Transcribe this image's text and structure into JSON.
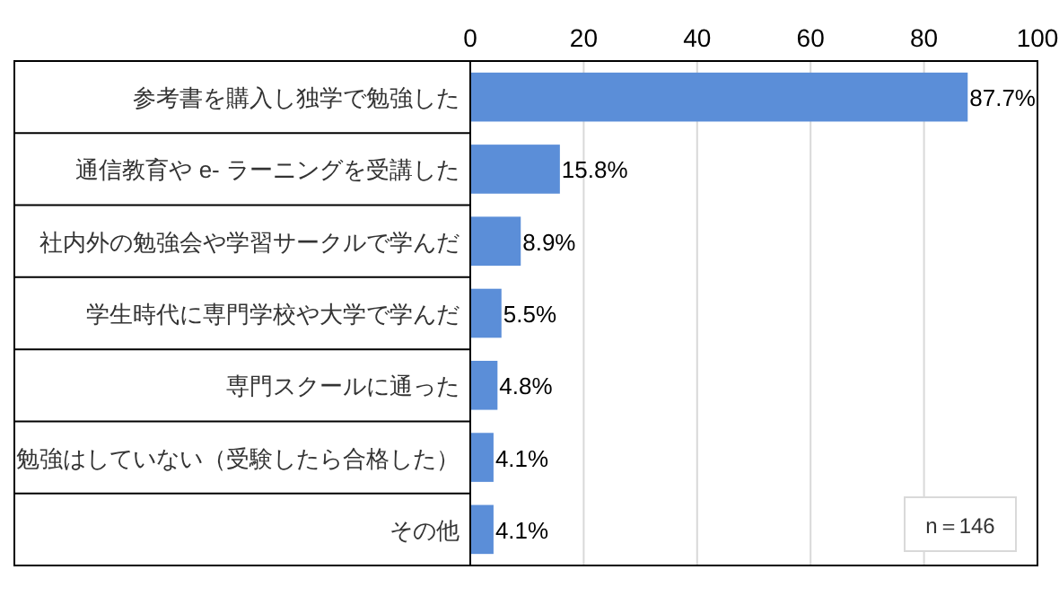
{
  "chart_data": {
    "type": "bar",
    "orientation": "horizontal",
    "categories": [
      "参考書を購入し独学で勉強した",
      "通信教育や e- ラーニングを受講した",
      "社内外の勉強会や学習サークルで学んだ",
      "学生時代に専門学校や大学で学んだ",
      "専門スクールに通った",
      "勉強はしていない（受験したら合格した）",
      "その他"
    ],
    "values": [
      87.7,
      15.8,
      8.9,
      5.5,
      4.8,
      4.1,
      4.1
    ],
    "value_labels": [
      "87.7%",
      "15.8%",
      "8.9%",
      "5.5%",
      "4.8%",
      "4.1%",
      "4.1%"
    ],
    "color": "#5b8ed8",
    "xlim": [
      0,
      100
    ],
    "xticks": [
      0,
      20,
      40,
      60,
      80,
      100
    ],
    "grid": "x",
    "annotations": [
      "n＝146"
    ]
  }
}
